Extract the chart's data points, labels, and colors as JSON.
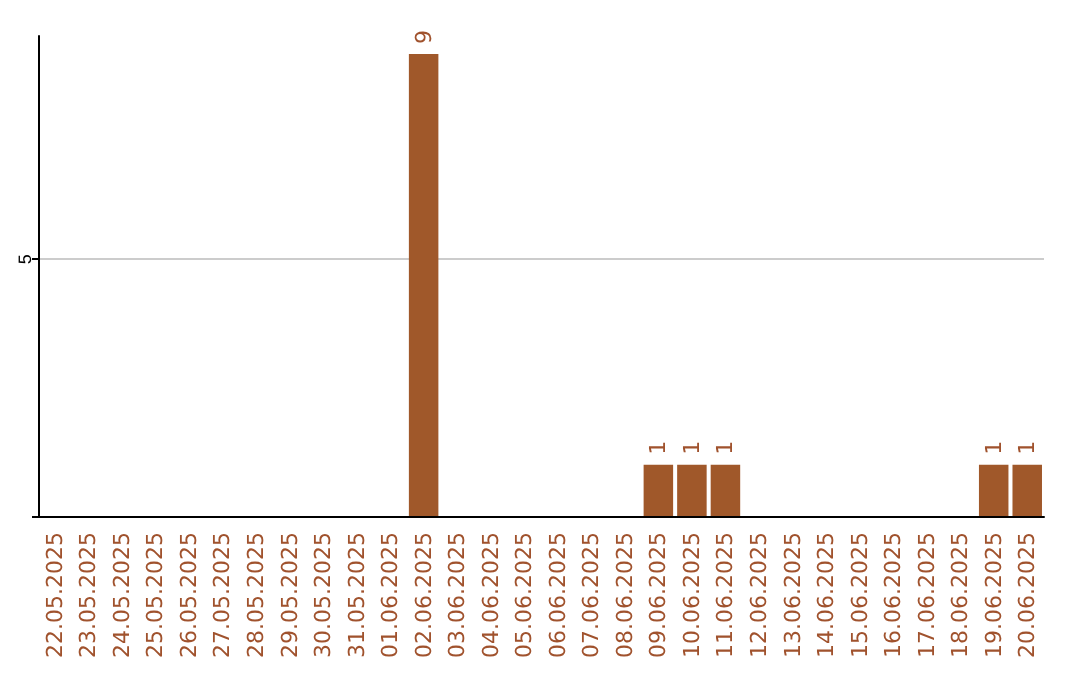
{
  "chart_data": {
    "type": "bar",
    "categories": [
      "22.05.2025",
      "23.05.2025",
      "24.05.2025",
      "25.05.2025",
      "26.05.2025",
      "27.05.2025",
      "28.05.2025",
      "29.05.2025",
      "30.05.2025",
      "31.05.2025",
      "01.06.2025",
      "02.06.2025",
      "03.06.2025",
      "04.06.2025",
      "05.06.2025",
      "06.06.2025",
      "07.06.2025",
      "08.06.2025",
      "09.06.2025",
      "10.06.2025",
      "11.06.2025",
      "12.06.2025",
      "13.06.2025",
      "14.06.2025",
      "15.06.2025",
      "16.06.2025",
      "17.06.2025",
      "18.06.2025",
      "19.06.2025",
      "20.06.2025"
    ],
    "values": [
      0,
      0,
      0,
      0,
      0,
      0,
      0,
      0,
      0,
      0,
      0,
      9,
      0,
      0,
      0,
      0,
      0,
      0,
      1,
      1,
      1,
      0,
      0,
      0,
      0,
      0,
      0,
      0,
      1,
      1
    ],
    "value_labels": [
      null,
      null,
      null,
      null,
      null,
      null,
      null,
      null,
      null,
      null,
      null,
      "9",
      null,
      null,
      null,
      null,
      null,
      null,
      "1",
      "1",
      "1",
      null,
      null,
      null,
      null,
      null,
      null,
      null,
      "1",
      "1"
    ],
    "color": "#a0582a",
    "ylim": [
      0,
      9.35
    ],
    "yticks": [
      {
        "value": 0,
        "label": null
      },
      5
    ],
    "grid": "y"
  }
}
